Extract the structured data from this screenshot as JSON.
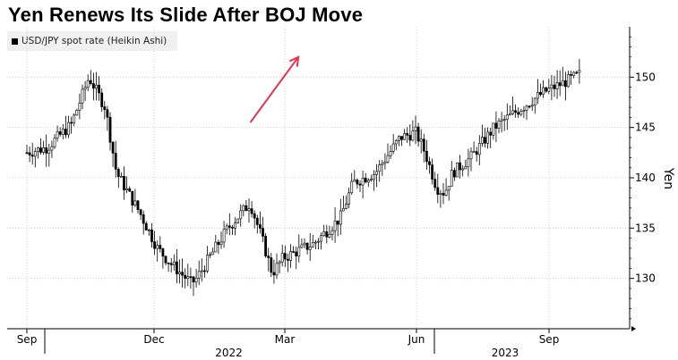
{
  "chart_data": {
    "type": "candlestick",
    "title": "Yen Renews Its Slide After BOJ Move",
    "legend": [
      {
        "label": "USD/JPY spot rate (Heikin Ashi)",
        "color": "#000000"
      }
    ],
    "ylabel": "Yen",
    "ylim": [
      125,
      155
    ],
    "y_ticks": [
      130,
      135,
      140,
      145,
      150
    ],
    "x_ticks": [
      "Sep",
      "Dec",
      "Mar",
      "Jun",
      "Sep"
    ],
    "x_tick_years": [
      {
        "after": 0,
        "label": "2022"
      },
      {
        "after": 3,
        "label": "2023"
      }
    ],
    "grid": "dotted",
    "trend_arrow": {
      "color": "#e0334d",
      "from": {
        "x": 0.856,
        "y": 145.5
      },
      "to": {
        "x": 1.04,
        "y": 152.0
      }
    },
    "series": [
      {
        "name": "USD/JPY",
        "anchors": [
          {
            "x": 0.0,
            "y": 142.5
          },
          {
            "x": 0.077,
            "y": 143.0
          },
          {
            "x": 0.17,
            "y": 145.3
          },
          {
            "x": 0.238,
            "y": 150.0
          },
          {
            "x": 0.3,
            "y": 147.0
          },
          {
            "x": 0.343,
            "y": 140.5
          },
          {
            "x": 0.433,
            "y": 136.5
          },
          {
            "x": 0.5,
            "y": 133.0
          },
          {
            "x": 0.55,
            "y": 131.5
          },
          {
            "x": 0.59,
            "y": 130.5
          },
          {
            "x": 0.63,
            "y": 129.5
          },
          {
            "x": 0.65,
            "y": 130.0
          },
          {
            "x": 0.77,
            "y": 135.0
          },
          {
            "x": 0.855,
            "y": 137.5
          },
          {
            "x": 0.9,
            "y": 134.0
          },
          {
            "x": 0.94,
            "y": 130.5
          },
          {
            "x": 0.98,
            "y": 132.0
          },
          {
            "x": 1.1,
            "y": 133.5
          },
          {
            "x": 1.2,
            "y": 136.0
          },
          {
            "x": 1.25,
            "y": 139.5
          },
          {
            "x": 1.335,
            "y": 140.5
          },
          {
            "x": 1.43,
            "y": 144.0
          },
          {
            "x": 1.49,
            "y": 144.5
          },
          {
            "x": 1.525,
            "y": 142.5
          },
          {
            "x": 1.57,
            "y": 139.0
          },
          {
            "x": 1.6,
            "y": 138.5
          },
          {
            "x": 1.63,
            "y": 140.5
          },
          {
            "x": 1.7,
            "y": 142.0
          },
          {
            "x": 1.79,
            "y": 145.0
          },
          {
            "x": 1.87,
            "y": 146.5
          },
          {
            "x": 1.98,
            "y": 148.5
          },
          {
            "x": 2.06,
            "y": 149.5
          },
          {
            "x": 2.12,
            "y": 150.3
          }
        ]
      }
    ]
  }
}
